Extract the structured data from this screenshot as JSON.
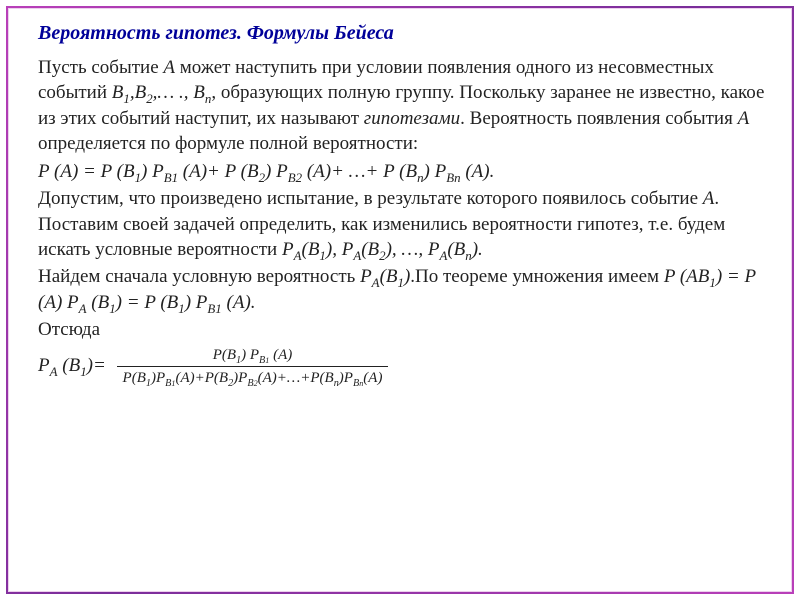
{
  "title": "Вероятность гипотез. Формулы Бейеса",
  "p1a": "Пусть событие ",
  "p1b": " может наступить при условии появления одного из несовместных событий ",
  "p1c": ", образующих полную группу. Поскольку заранее не известно, какое из этих событий наступит, их называют ",
  "hypo": "гипотезами",
  "p1d": ". Вероятность появления события ",
  "p1e": " определяется по формуле полной вероятности:",
  "eventA": "A",
  "Blist_prefix": "B",
  "Blist_sep": ",",
  "ellipsis": "… .,",
  "n": "n",
  "fullprob": "P (A) = P (B₁) P_{B1} (A)+ P (B₂) P_{B2} (A)+ …+ P (B_n) P_{Bn} (A).",
  "p2a": "Допустим, что произведено испытание, в результате которого появилось событие ",
  "p2b": ". Поставим своей задачей определить, как изменились вероятности гипотез, т.е. будем искать условные вероятности    ",
  "condlist": "P_A(B₁), P_A(B₂), …, P_A(B_n).",
  "p3a": "Найдем сначала условную вероятность ",
  "p3b": ".По теореме умножения имеем    ",
  "pab1": "P_A(B₁)",
  "mult": "P (AB₁) = P (A) P_A (B₁) = P (B₁) P_{B1} (A).",
  "p4": "Отсюда",
  "lhs": "P_A (B₁)=",
  "frac_num": "P(B₁) P_{B₁} (A)",
  "frac_den": "P(B₁)P_{B₁}(A)+P(B₂)P_{B₂}(A)+…+P(B_n)P_{B_n}(A)",
  "colors": {
    "title": "#000099",
    "border_grad_a": "#b93fb9",
    "border_grad_b": "#7a2d9a",
    "text": "#222222",
    "bg": "#ffffff"
  },
  "fonts": {
    "family": "Times New Roman",
    "body_pt": 19,
    "title_pt": 20,
    "frac_pt": 15
  }
}
